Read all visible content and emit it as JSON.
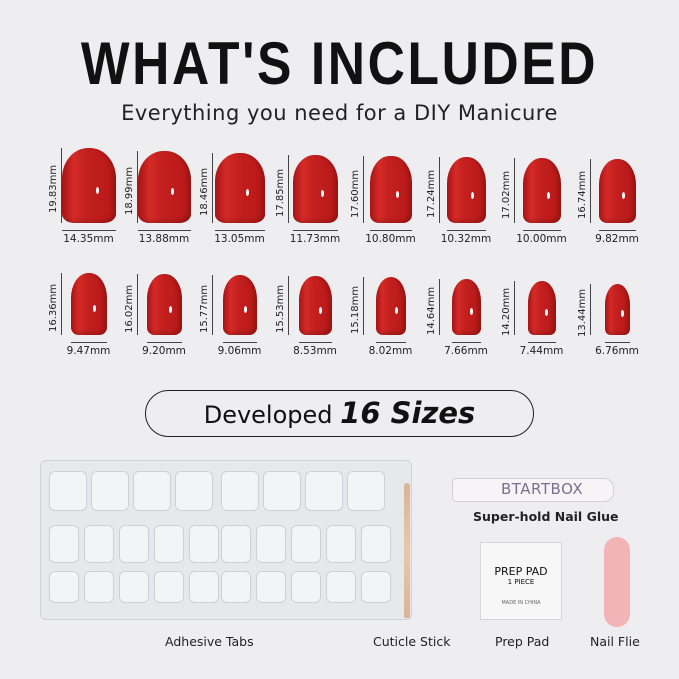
{
  "header": {
    "title": "WHAT'S INCLUDED",
    "subtitle": "Everything you need for a DIY Manicure"
  },
  "nail_color": "#c21f1f",
  "sizes": [
    {
      "length": "19.83mm",
      "width": "14.35mm",
      "l": 19.83,
      "w": 14.35
    },
    {
      "length": "18.99mm",
      "width": "13.88mm",
      "l": 18.99,
      "w": 13.88
    },
    {
      "length": "18.46mm",
      "width": "13.05mm",
      "l": 18.46,
      "w": 13.05
    },
    {
      "length": "17.85mm",
      "width": "11.73mm",
      "l": 17.85,
      "w": 11.73
    },
    {
      "length": "17.60mm",
      "width": "10.80mm",
      "l": 17.6,
      "w": 10.8
    },
    {
      "length": "17.24mm",
      "width": "10.32mm",
      "l": 17.24,
      "w": 10.32
    },
    {
      "length": "17.02mm",
      "width": "10.00mm",
      "l": 17.02,
      "w": 10.0
    },
    {
      "length": "16.74mm",
      "width": "9.82mm",
      "l": 16.74,
      "w": 9.82
    },
    {
      "length": "16.36mm",
      "width": "9.47mm",
      "l": 16.36,
      "w": 9.47
    },
    {
      "length": "16.02mm",
      "width": "9.20mm",
      "l": 16.02,
      "w": 9.2
    },
    {
      "length": "15.77mm",
      "width": "9.06mm",
      "l": 15.77,
      "w": 9.06
    },
    {
      "length": "15.53mm",
      "width": "8.53mm",
      "l": 15.53,
      "w": 8.53
    },
    {
      "length": "15.18mm",
      "width": "8.02mm",
      "l": 15.18,
      "w": 8.02
    },
    {
      "length": "14.64mm",
      "width": "7.66mm",
      "l": 14.64,
      "w": 7.66
    },
    {
      "length": "14.20mm",
      "width": "7.44mm",
      "l": 14.2,
      "w": 7.44
    },
    {
      "length": "13.44mm",
      "width": "6.76mm",
      "l": 13.44,
      "w": 6.76
    }
  ],
  "banner": {
    "prefix": "Developed",
    "emphasis": "16 Sizes"
  },
  "items": {
    "tabs": "Adhesive Tabs",
    "stick": "Cuticle Stick",
    "glue": "Super-hold Nail Glue",
    "glue_brand": "BTARTBOX",
    "pad": "Prep Pad",
    "pad_text": "PREP PAD",
    "pad_sub": "1 PIECE",
    "pad_foot": "MADE IN CHINA",
    "file": "Nail Flie"
  }
}
